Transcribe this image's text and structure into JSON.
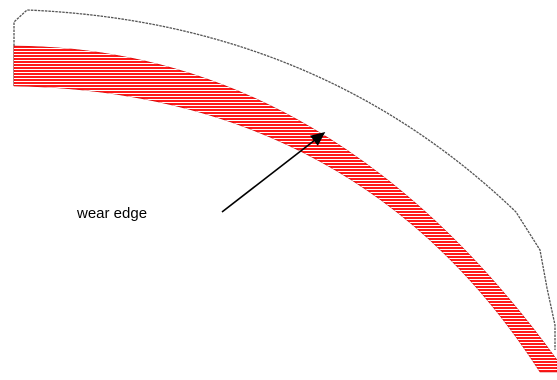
{
  "annotation": {
    "label": "wear edge"
  },
  "colors": {
    "wear_fill": "#ff1a1a",
    "hatch_line": "#ffffff",
    "outline": "#555555",
    "arrow": "#000000"
  }
}
